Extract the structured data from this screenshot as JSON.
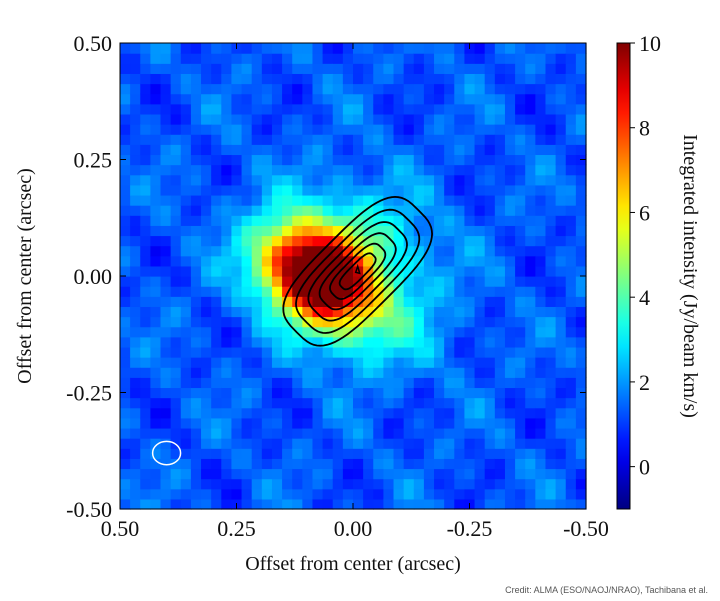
{
  "chart_data": {
    "type": "heatmap",
    "xlabel": "Offset from center (arcsec)",
    "ylabel": "Offset from center (arcsec)",
    "colorbar_label": "Integrated intensity (Jy/beam km/s)",
    "xlim": [
      0.5,
      -0.5
    ],
    "ylim": [
      -0.5,
      0.5
    ],
    "x_ticks": [
      0.5,
      0.25,
      0.0,
      -0.25,
      -0.5
    ],
    "x_tick_labels": [
      "0.50",
      "0.25",
      "0.00",
      "-0.25",
      "-0.50"
    ],
    "y_ticks": [
      0.5,
      0.25,
      0.0,
      -0.25,
      -0.5
    ],
    "y_tick_labels": [
      "0.50",
      "0.25",
      "0.00",
      "-0.25",
      "-0.50"
    ],
    "colorbar_range": [
      -1,
      10
    ],
    "colorbar_ticks": [
      0,
      2,
      4,
      6,
      8,
      10
    ],
    "colorbar_tick_labels": [
      "0",
      "2",
      "4",
      "6",
      "8",
      "10"
    ],
    "colormap": "jet",
    "emission_peaks": [
      {
        "x": 0.08,
        "y": 0.0,
        "peak": 9.5,
        "sigma_major": 0.085,
        "sigma_minor": 0.06,
        "angle_deg": 35
      },
      {
        "x": 0.02,
        "y": 0.04,
        "peak": 3.0,
        "sigma_major": 0.12,
        "sigma_minor": 0.1,
        "angle_deg": 0
      },
      {
        "x": -0.06,
        "y": -0.12,
        "peak": 1.2,
        "sigma_major": 0.1,
        "sigma_minor": 0.07,
        "angle_deg": 0
      }
    ],
    "background_level": 1.3,
    "contours": {
      "color": "#000000",
      "center": {
        "x": -0.01,
        "y": 0.01
      },
      "angle_deg": 45,
      "rings": [
        {
          "a": 0.185,
          "b": 0.085
        },
        {
          "a": 0.155,
          "b": 0.068
        },
        {
          "a": 0.125,
          "b": 0.053
        },
        {
          "a": 0.098,
          "b": 0.039
        },
        {
          "a": 0.072,
          "b": 0.027
        },
        {
          "a": 0.048,
          "b": 0.016
        }
      ],
      "peak_marker": {
        "x": -0.01,
        "y": 0.01
      }
    },
    "beam": {
      "x": 0.4,
      "y": -0.38,
      "major": 0.06,
      "minor": 0.05,
      "color": "#ffffff"
    }
  },
  "credit": "Credit: ALMA (ESO/NAOJ/NRAO), Tachibana et al."
}
